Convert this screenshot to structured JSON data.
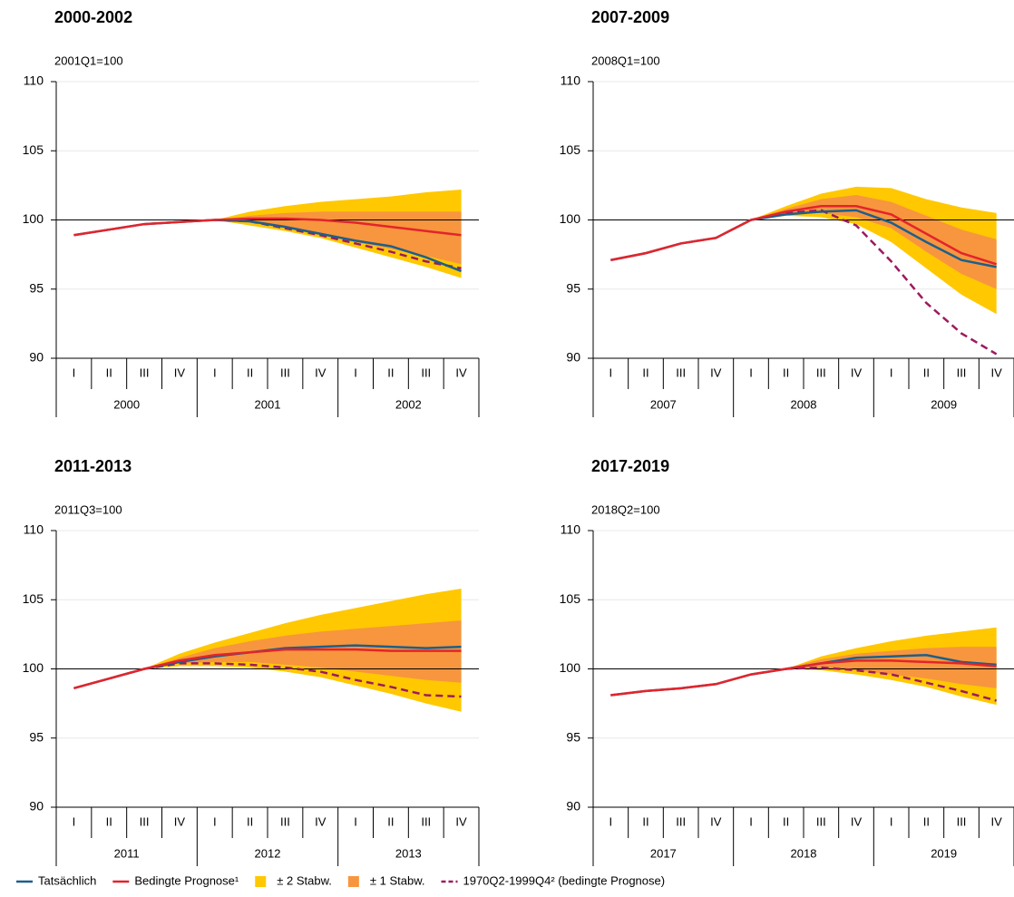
{
  "legend": [
    {
      "name": "Tatsächlich",
      "color": "#1d5f8a",
      "style": "line"
    },
    {
      "name": "Bedingte Prognose¹",
      "color": "#e3242b",
      "style": "line"
    },
    {
      "name": "± 2 Stabw.",
      "color": "#ffc800",
      "style": "band"
    },
    {
      "name": "± 1 Stabw.",
      "color": "#f7963e",
      "style": "band"
    },
    {
      "name": "1970Q2-1999Q4² (bedingte Prognose)",
      "color": "#9b1b5f",
      "style": "dashed"
    }
  ],
  "chart_data": [
    {
      "type": "line",
      "title": "2000-2002",
      "subtitle": "2001Q1=100",
      "categories": [
        "I",
        "II",
        "III",
        "IV",
        "I",
        "II",
        "III",
        "IV",
        "I",
        "II",
        "III",
        "IV"
      ],
      "groups": [
        "2000",
        "2001",
        "2002"
      ],
      "ylim": [
        90,
        110
      ],
      "yticks": [
        90,
        95,
        100,
        105,
        110
      ],
      "hline": 100,
      "grid": true,
      "series": [
        {
          "values": [
            98.9,
            99.3,
            99.7,
            99.85,
            100,
            99.9,
            99.5,
            99.0,
            98.5,
            98.1,
            97.3,
            96.3
          ]
        },
        {
          "values": [
            98.9,
            99.3,
            99.7,
            99.85,
            100,
            100.1,
            100.1,
            100.0,
            99.8,
            99.5,
            99.2,
            98.9
          ]
        },
        {
          "upper": [
            null,
            null,
            null,
            null,
            100,
            100.6,
            101.0,
            101.3,
            101.5,
            101.7,
            102.0,
            102.2
          ],
          "lower": [
            null,
            null,
            null,
            null,
            100,
            99.6,
            99.2,
            98.7,
            98.0,
            97.3,
            96.6,
            95.8
          ]
        },
        {
          "upper": [
            null,
            null,
            null,
            null,
            100,
            100.3,
            100.5,
            100.6,
            100.6,
            100.6,
            100.6,
            100.6
          ],
          "lower": [
            null,
            null,
            null,
            null,
            100,
            99.8,
            99.4,
            98.9,
            98.4,
            97.9,
            97.4,
            96.8
          ]
        },
        {
          "values": [
            null,
            null,
            null,
            null,
            100,
            99.9,
            99.4,
            98.9,
            98.3,
            97.7,
            97.0,
            96.5
          ]
        }
      ]
    },
    {
      "type": "line",
      "title": "2007-2009",
      "subtitle": "2008Q1=100",
      "categories": [
        "I",
        "II",
        "III",
        "IV",
        "I",
        "II",
        "III",
        "IV",
        "I",
        "II",
        "III",
        "IV"
      ],
      "groups": [
        "2007",
        "2008",
        "2009"
      ],
      "ylim": [
        90,
        110
      ],
      "yticks": [
        90,
        95,
        100,
        105,
        110
      ],
      "hline": 100,
      "grid": true,
      "series": [
        {
          "values": [
            97.1,
            97.6,
            98.3,
            98.7,
            100,
            100.4,
            100.6,
            100.7,
            99.8,
            98.4,
            97.1,
            96.6
          ]
        },
        {
          "values": [
            97.1,
            97.6,
            98.3,
            98.7,
            100,
            100.6,
            101.0,
            101.0,
            100.4,
            99.0,
            97.6,
            96.8
          ]
        },
        {
          "upper": [
            null,
            null,
            null,
            null,
            100,
            101.0,
            101.9,
            102.4,
            102.3,
            101.5,
            100.9,
            100.5
          ],
          "lower": [
            null,
            null,
            null,
            null,
            100,
            100.3,
            100.2,
            99.7,
            98.4,
            96.5,
            94.6,
            93.2
          ]
        },
        {
          "upper": [
            null,
            null,
            null,
            null,
            100,
            100.8,
            101.5,
            101.8,
            101.3,
            100.3,
            99.3,
            98.6
          ],
          "lower": [
            null,
            null,
            null,
            null,
            100,
            100.4,
            100.5,
            100.2,
            99.4,
            97.7,
            96.1,
            95.0
          ]
        },
        {
          "values": [
            null,
            null,
            null,
            null,
            100,
            100.5,
            100.7,
            99.6,
            97.0,
            94.0,
            91.8,
            90.3
          ]
        }
      ]
    },
    {
      "type": "line",
      "title": "2011-2013",
      "subtitle": "2011Q3=100",
      "categories": [
        "I",
        "II",
        "III",
        "IV",
        "I",
        "II",
        "III",
        "IV",
        "I",
        "II",
        "III",
        "IV"
      ],
      "groups": [
        "2011",
        "2012",
        "2013"
      ],
      "ylim": [
        90,
        110
      ],
      "yticks": [
        90,
        95,
        100,
        105,
        110
      ],
      "hline": 100,
      "grid": true,
      "series": [
        {
          "values": [
            98.6,
            99.3,
            100,
            100.5,
            100.9,
            101.2,
            101.5,
            101.6,
            101.7,
            101.6,
            101.5,
            101.6
          ]
        },
        {
          "values": [
            98.6,
            99.3,
            100,
            100.6,
            101.0,
            101.2,
            101.4,
            101.4,
            101.4,
            101.3,
            101.3,
            101.3
          ]
        },
        {
          "upper": [
            null,
            null,
            100,
            101.1,
            101.9,
            102.6,
            103.3,
            103.9,
            104.4,
            104.9,
            105.4,
            105.8
          ],
          "lower": [
            null,
            null,
            100,
            100.2,
            100.2,
            100.1,
            99.8,
            99.4,
            98.8,
            98.2,
            97.5,
            96.9
          ]
        },
        {
          "upper": [
            null,
            null,
            100,
            100.8,
            101.5,
            102.0,
            102.4,
            102.7,
            102.9,
            103.1,
            103.3,
            103.5
          ],
          "lower": [
            null,
            null,
            100,
            100.4,
            100.5,
            100.5,
            100.3,
            100.1,
            99.8,
            99.5,
            99.2,
            99.0
          ]
        },
        {
          "values": [
            null,
            null,
            100,
            100.4,
            100.4,
            100.3,
            100.1,
            99.8,
            99.2,
            98.7,
            98.1,
            98.0
          ]
        }
      ]
    },
    {
      "type": "line",
      "title": "2017-2019",
      "subtitle": "2018Q2=100",
      "categories": [
        "I",
        "II",
        "III",
        "IV",
        "I",
        "II",
        "III",
        "IV",
        "I",
        "II",
        "III",
        "IV"
      ],
      "groups": [
        "2017",
        "2018",
        "2019"
      ],
      "ylim": [
        90,
        110
      ],
      "yticks": [
        90,
        95,
        100,
        105,
        110
      ],
      "hline": 100,
      "grid": true,
      "series": [
        {
          "values": [
            98.1,
            98.4,
            98.6,
            98.9,
            99.6,
            100,
            100.4,
            100.8,
            100.9,
            101.0,
            100.5,
            100.3
          ]
        },
        {
          "values": [
            98.1,
            98.4,
            98.6,
            98.9,
            99.6,
            100,
            100.4,
            100.6,
            100.6,
            100.5,
            100.4,
            100.2
          ]
        },
        {
          "upper": [
            null,
            null,
            null,
            null,
            null,
            100,
            100.9,
            101.5,
            102.0,
            102.4,
            102.7,
            103.0
          ],
          "lower": [
            null,
            null,
            null,
            null,
            null,
            100,
            99.9,
            99.6,
            99.2,
            98.7,
            98.0,
            97.4
          ]
        },
        {
          "upper": [
            null,
            null,
            null,
            null,
            null,
            100,
            100.7,
            101.1,
            101.3,
            101.5,
            101.6,
            101.6
          ],
          "lower": [
            null,
            null,
            null,
            null,
            null,
            100,
            100.0,
            99.9,
            99.6,
            99.3,
            98.9,
            98.6
          ]
        },
        {
          "values": [
            null,
            null,
            null,
            null,
            null,
            100,
            100.1,
            99.9,
            99.6,
            99.0,
            98.4,
            97.7
          ]
        }
      ]
    }
  ]
}
